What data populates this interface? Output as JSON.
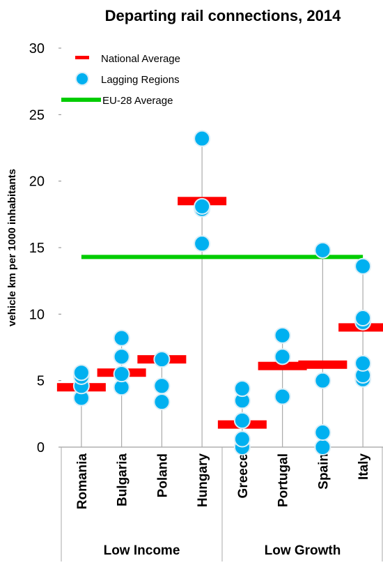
{
  "chart_data": {
    "type": "dot-range",
    "title": "Departing rail connections, 2014",
    "y_label": "vehicle km per 1000 inhabitants",
    "categories": [
      "Romania",
      "Bulgaria",
      "Poland",
      "Hungary",
      "Greece",
      "Portugal",
      "Spain",
      "Italy"
    ],
    "groups": [
      {
        "label": "Low Income",
        "span": [
          0,
          3
        ]
      },
      {
        "label": "Low Growth",
        "span": [
          4,
          7
        ]
      }
    ],
    "national_average": {
      "name": "National Average",
      "color": "#ff0000",
      "values": [
        4.5,
        5.6,
        6.6,
        18.5,
        1.7,
        6.1,
        6.2,
        9.0
      ]
    },
    "lagging_regions": {
      "name": "Lagging Regions",
      "color": "#00b0f0",
      "values": [
        [
          3.7,
          4.6,
          5.3,
          5.6
        ],
        [
          4.5,
          5.5,
          6.8,
          8.2
        ],
        [
          3.4,
          4.6,
          6.6
        ],
        [
          15.3,
          17.9,
          18.1,
          23.2
        ],
        [
          0,
          0.6,
          2.0,
          3.5,
          4.4
        ],
        [
          3.8,
          6.8,
          8.4
        ],
        [
          0,
          1.1,
          5.0,
          14.8
        ],
        [
          5.1,
          5.4,
          6.3,
          9.4,
          9.7,
          13.6
        ]
      ]
    },
    "eu28_average": {
      "name": "EU-28 Average",
      "color": "#00cc00",
      "value": 14.3
    },
    "ylim": [
      0,
      30
    ],
    "yticks": [
      0,
      5,
      10,
      15,
      20,
      25,
      30
    ]
  }
}
